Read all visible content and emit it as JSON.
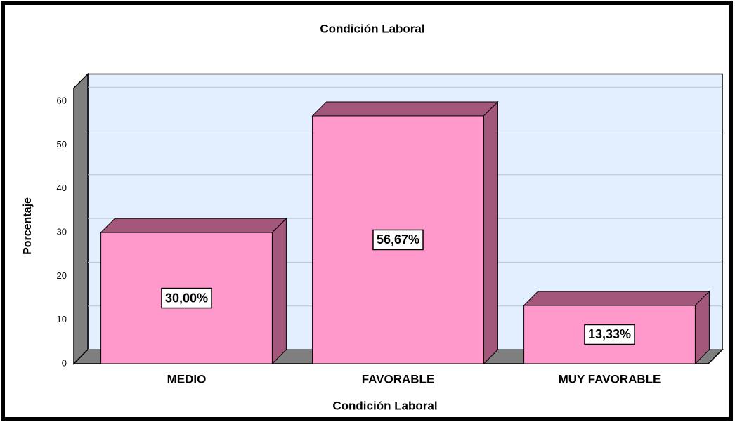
{
  "chart_data": {
    "type": "bar3d",
    "title": "Condición Laboral",
    "x_label": "Condición Laboral",
    "y_label": "Porcentaje",
    "categories": [
      "MEDIO",
      "FAVORABLE",
      "MUY FAVORABLE"
    ],
    "values": [
      30,
      56.67,
      13.33
    ],
    "value_labels": [
      "30,00%",
      "56,67%",
      "13,33%"
    ],
    "color": "#ff99cc",
    "shade_color": "#a3577b",
    "ylim": [
      0,
      63
    ],
    "yticks": [
      0,
      10,
      20,
      30,
      40,
      50,
      60
    ],
    "grid": true
  }
}
